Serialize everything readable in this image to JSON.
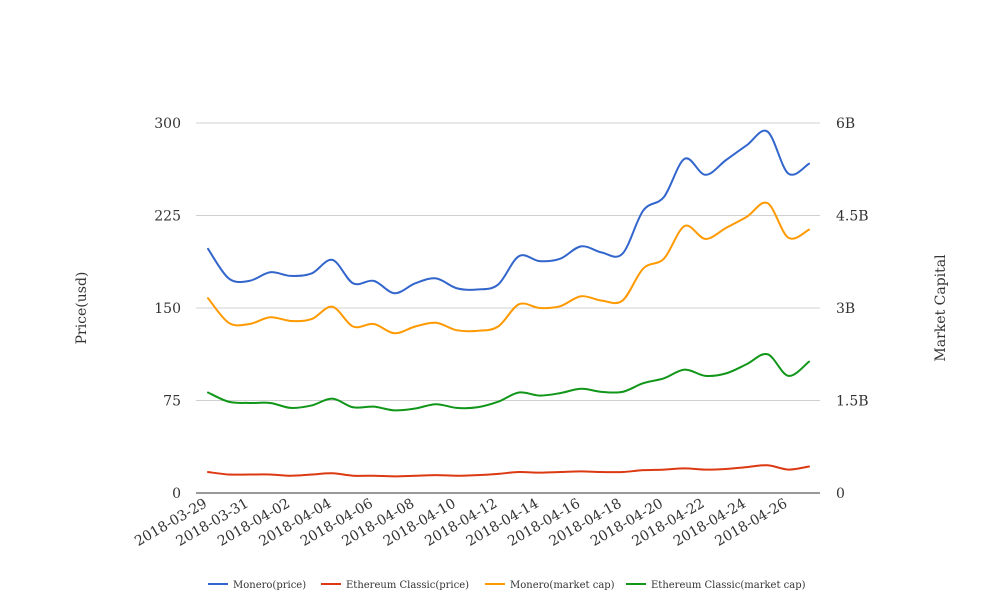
{
  "chart_data": {
    "type": "line",
    "title": "",
    "xlabel": "",
    "ylabel_left": "Price(usd)",
    "ylabel_right": "Market Capital",
    "ylim_left": [
      0,
      300
    ],
    "ylim_right": [
      0,
      6000000000
    ],
    "y_ticks_left": [
      "0",
      "75",
      "150",
      "225",
      "300"
    ],
    "y_ticks_right": [
      "0",
      "1.5B",
      "3B",
      "4.5B",
      "6B"
    ],
    "grid": true,
    "legend_position": "bottom",
    "x": [
      "2018-03-29",
      "2018-03-30",
      "2018-03-31",
      "2018-04-01",
      "2018-04-02",
      "2018-04-03",
      "2018-04-04",
      "2018-04-05",
      "2018-04-06",
      "2018-04-07",
      "2018-04-08",
      "2018-04-09",
      "2018-04-10",
      "2018-04-11",
      "2018-04-12",
      "2018-04-13",
      "2018-04-14",
      "2018-04-15",
      "2018-04-16",
      "2018-04-17",
      "2018-04-18",
      "2018-04-19",
      "2018-04-20",
      "2018-04-21",
      "2018-04-22",
      "2018-04-23",
      "2018-04-24",
      "2018-04-25",
      "2018-04-26",
      "2018-04-27"
    ],
    "x_tick_labels": [
      "2018-03-29",
      "2018-03-31",
      "2018-04-02",
      "2018-04-04",
      "2018-04-06",
      "2018-04-08",
      "2018-04-10",
      "2018-04-12",
      "2018-04-14",
      "2018-04-16",
      "2018-04-18",
      "2018-04-20",
      "2018-04-22",
      "2018-04-24",
      "2018-04-26"
    ],
    "series": [
      {
        "name": "Monero(price)",
        "axis": "left",
        "color": "#3366cc",
        "values": [
          198,
          174,
          172,
          179,
          176,
          178,
          189,
          170,
          172,
          162,
          170,
          174,
          166,
          165,
          169,
          192,
          188,
          190,
          200,
          195,
          194,
          229,
          240,
          271,
          258,
          270,
          282,
          293,
          259,
          267
        ]
      },
      {
        "name": "Ethereum Classic(price)",
        "axis": "left",
        "color": "#dc3912",
        "values": [
          17,
          15,
          15,
          15,
          14,
          15,
          16,
          14,
          14,
          13.5,
          14,
          14.5,
          14,
          14.5,
          15.5,
          17,
          16.5,
          17,
          17.5,
          17,
          17,
          18.5,
          19,
          20,
          19,
          19.5,
          21,
          22.5,
          19,
          21.5
        ]
      },
      {
        "name": "Monero(market cap)",
        "axis": "right",
        "color": "#ff9900",
        "values": [
          3160000000,
          2760000000,
          2740000000,
          2850000000,
          2790000000,
          2820000000,
          3020000000,
          2700000000,
          2740000000,
          2590000000,
          2700000000,
          2760000000,
          2640000000,
          2630000000,
          2700000000,
          3060000000,
          3000000000,
          3030000000,
          3190000000,
          3120000000,
          3120000000,
          3640000000,
          3800000000,
          4330000000,
          4120000000,
          4300000000,
          4480000000,
          4700000000,
          4140000000,
          4270000000
        ]
      },
      {
        "name": "Ethereum Classic(market cap)",
        "axis": "right",
        "color": "#109618",
        "values": [
          1630000000,
          1480000000,
          1460000000,
          1460000000,
          1380000000,
          1420000000,
          1530000000,
          1390000000,
          1400000000,
          1340000000,
          1370000000,
          1440000000,
          1380000000,
          1390000000,
          1480000000,
          1630000000,
          1580000000,
          1620000000,
          1690000000,
          1640000000,
          1640000000,
          1780000000,
          1860000000,
          2000000000,
          1900000000,
          1940000000,
          2090000000,
          2250000000,
          1900000000,
          2130000000
        ]
      }
    ]
  }
}
